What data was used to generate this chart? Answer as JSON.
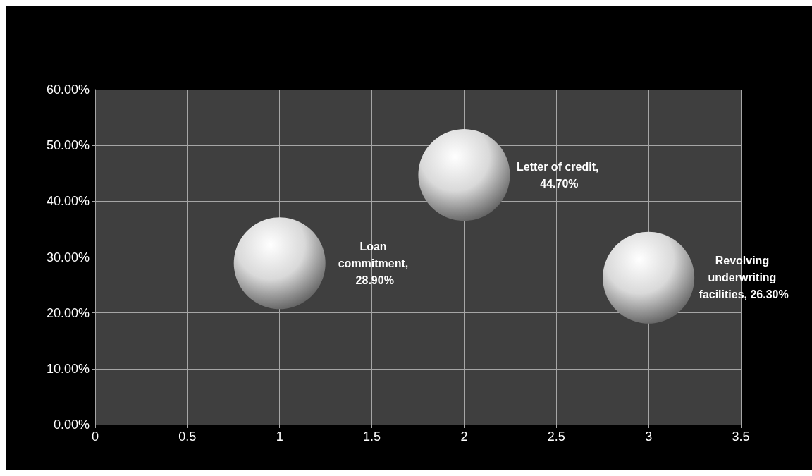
{
  "chart_data": {
    "type": "bubble",
    "series": [
      {
        "color": "#d9d9d9",
        "x": [
          1,
          2,
          3
        ],
        "values": [
          28.9,
          44.7,
          26.3
        ],
        "sizes": [
          1,
          1,
          1
        ],
        "value_labels": [
          "Loan commitment, 28.90%",
          "Letter of credit, 44.70%",
          "Revolving underwriting facilities, 26.30%"
        ]
      }
    ],
    "xlim": [
      0,
      3.5
    ],
    "xticks": [
      0,
      0.5,
      1,
      1.5,
      2,
      2.5,
      3,
      3.5
    ],
    "ylim": [
      0,
      60
    ],
    "yticks": [
      {
        "value": 0,
        "label": "0.00%"
      },
      {
        "value": 10,
        "label": "10.00%"
      },
      {
        "value": 20,
        "label": "20.00%"
      },
      {
        "value": 30,
        "label": "30.00%"
      },
      {
        "value": 40,
        "label": "40.00%"
      },
      {
        "value": 50,
        "label": "50.00%"
      },
      {
        "value": 60,
        "label": "60.00%"
      }
    ],
    "grid": true
  }
}
